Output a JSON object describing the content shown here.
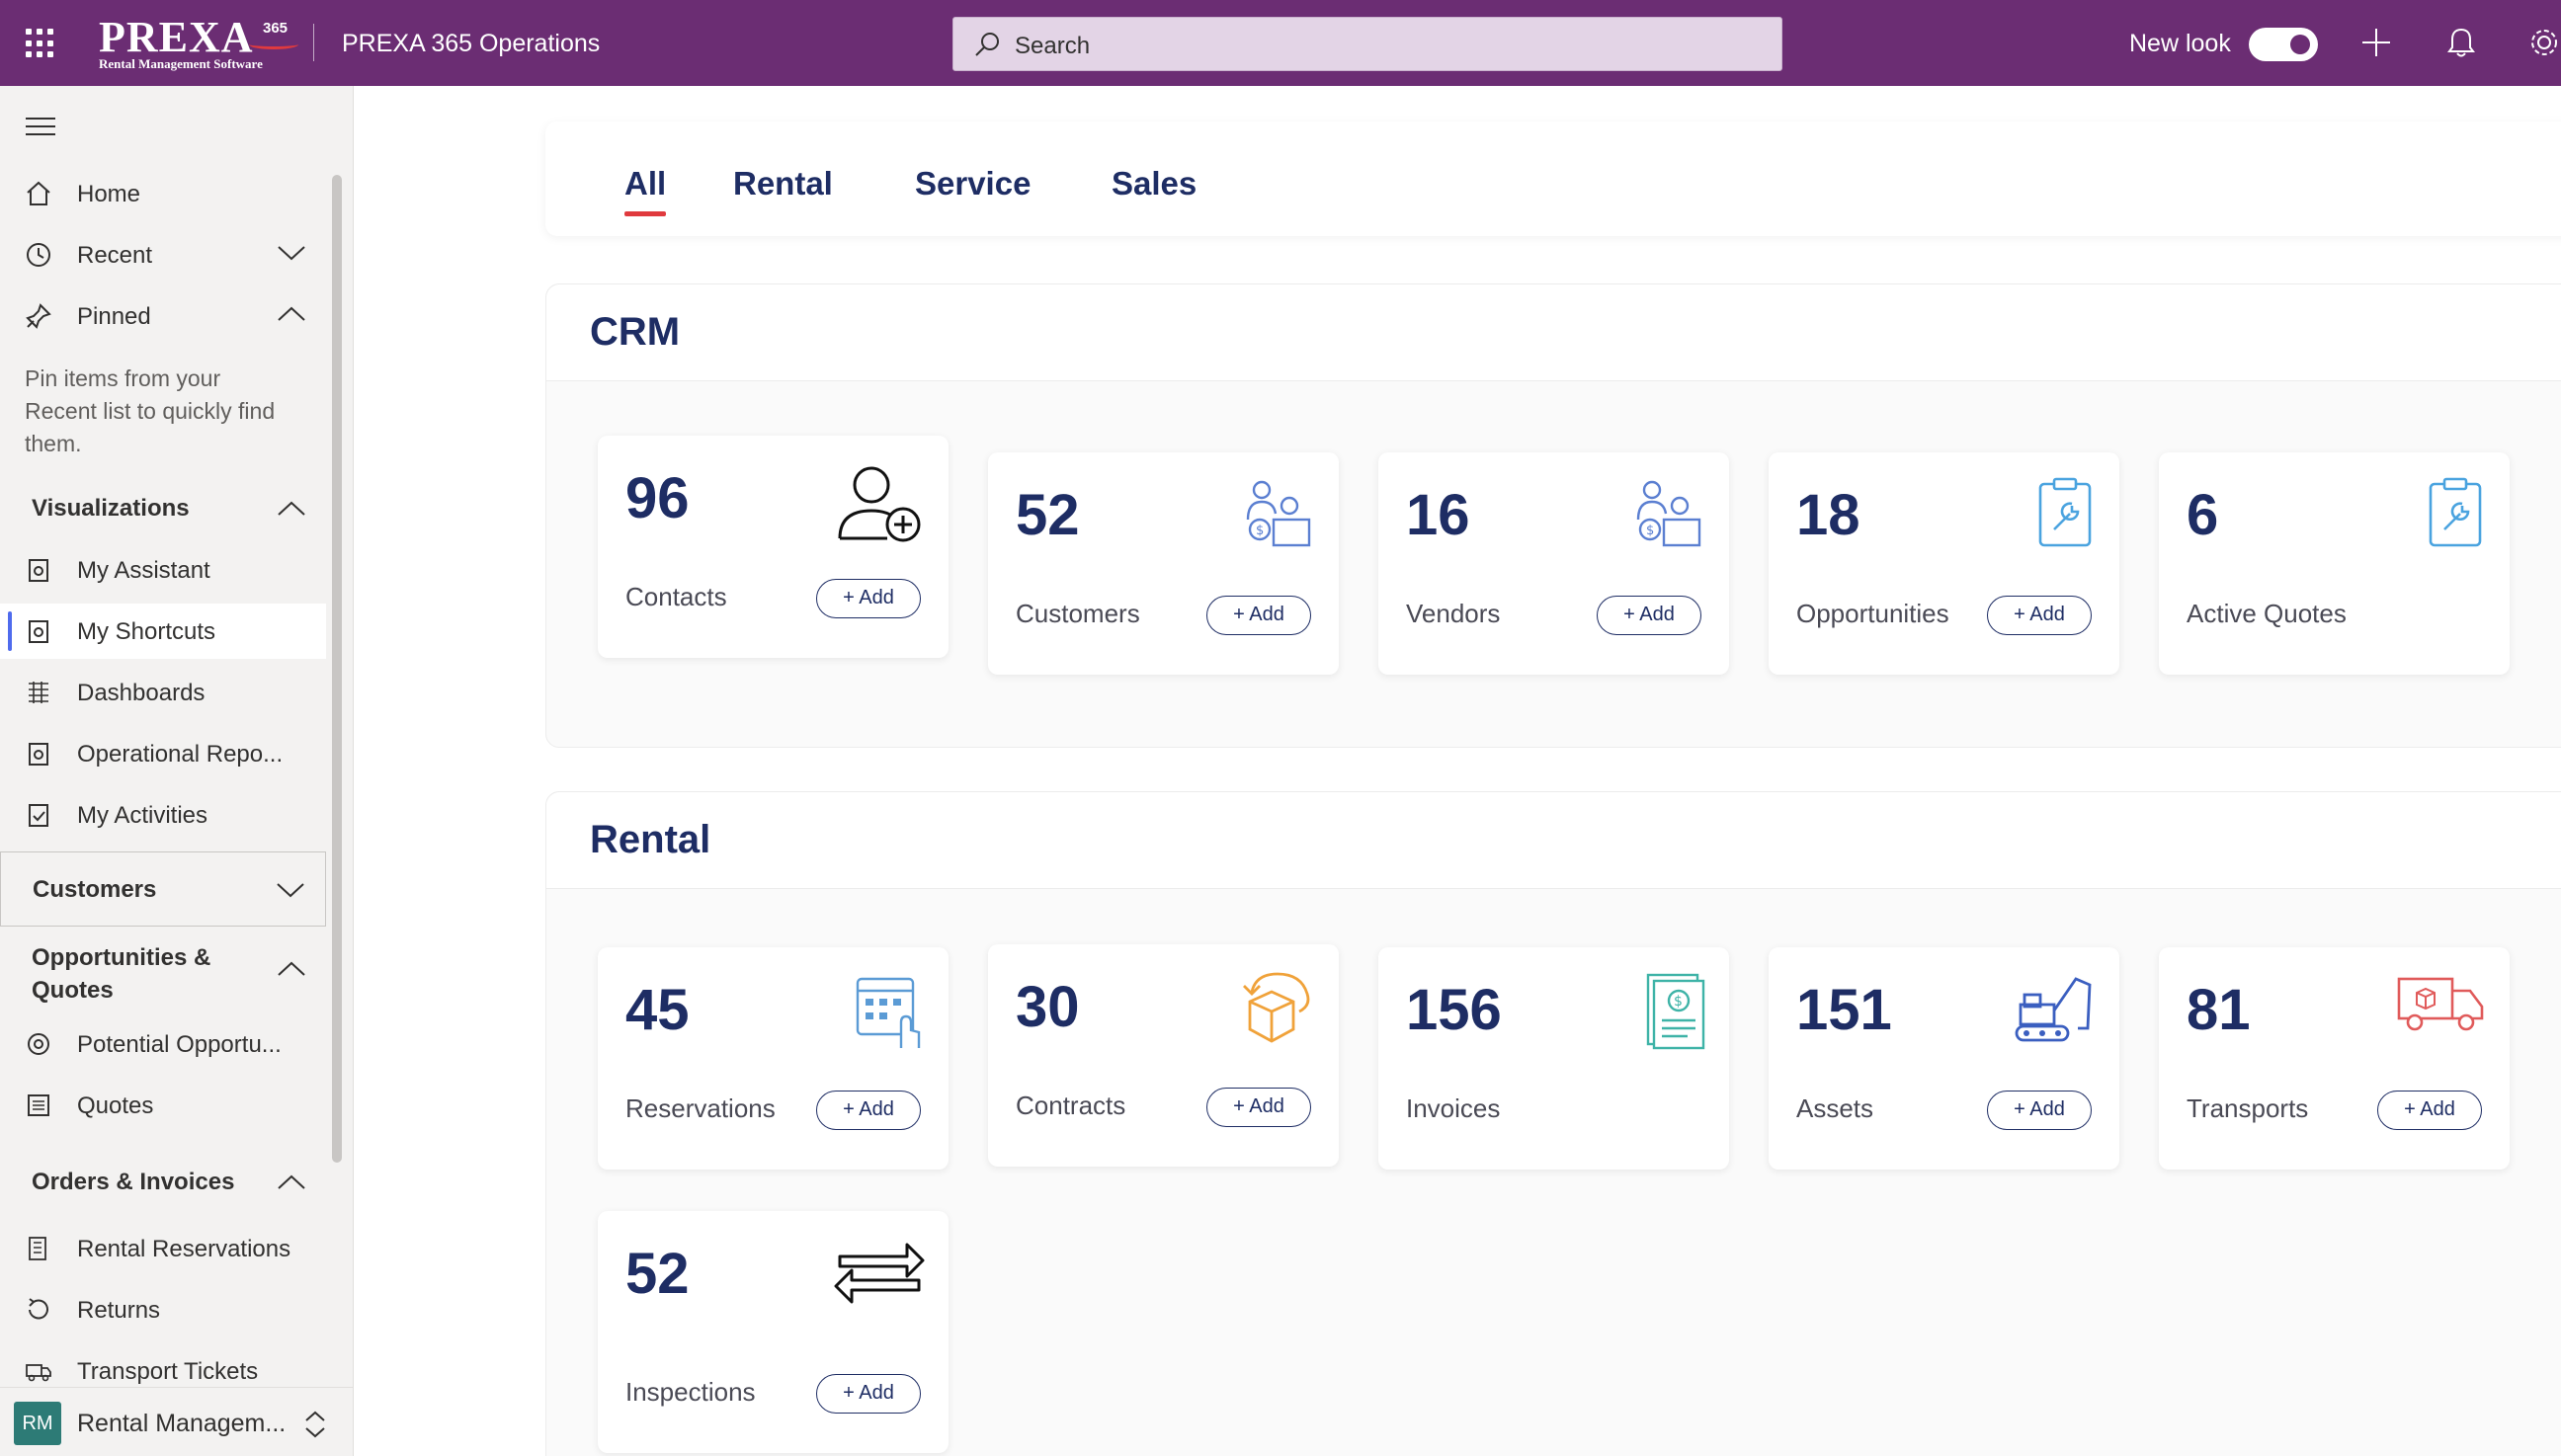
{
  "topbar": {
    "logo_word": "PREXA",
    "logo_sup": "365",
    "logo_sub": "Rental Management Software",
    "app_title": "PREXA 365 Operations",
    "search_placeholder": "Search",
    "new_look_label": "New look",
    "new_look_on": true
  },
  "sidebar": {
    "items": [
      {
        "label": "Home",
        "icon": "home-icon"
      },
      {
        "label": "Recent",
        "icon": "clock-icon"
      },
      {
        "label": "Pinned",
        "icon": "pin-icon"
      }
    ],
    "pin_help": "Pin items from your Recent list to quickly find them.",
    "visualizations": {
      "title": "Visualizations",
      "items": [
        {
          "label": "My Assistant"
        },
        {
          "label": "My Shortcuts",
          "selected": true
        },
        {
          "label": "Dashboards"
        },
        {
          "label": "Operational Repo..."
        },
        {
          "label": "My Activities"
        }
      ]
    },
    "customers": {
      "title": "Customers"
    },
    "opportunities": {
      "title": "Opportunities & Quotes",
      "items": [
        {
          "label": "Potential Opportu..."
        },
        {
          "label": "Quotes"
        }
      ]
    },
    "orders": {
      "title": "Orders & Invoices",
      "items": [
        {
          "label": "Rental Reservations"
        },
        {
          "label": "Returns"
        },
        {
          "label": "Transport Tickets"
        }
      ]
    },
    "app_switcher": {
      "initials": "RM",
      "label": "Rental Managem..."
    }
  },
  "tabs": [
    {
      "label": "All",
      "active": true
    },
    {
      "label": "Rental"
    },
    {
      "label": "Service"
    },
    {
      "label": "Sales"
    }
  ],
  "add_label": "+ Add",
  "crm": {
    "title": "CRM",
    "cards": [
      {
        "count": "96",
        "label": "Contacts",
        "icon": "add-person-icon",
        "has_add": true
      },
      {
        "count": "52",
        "label": "Customers",
        "icon": "customers-icon",
        "has_add": true
      },
      {
        "count": "16",
        "label": "Vendors",
        "icon": "vendors-icon",
        "has_add": true
      },
      {
        "count": "18",
        "label": "Opportunities",
        "icon": "clipboard-wrench-icon",
        "has_add": true
      },
      {
        "count": "6",
        "label": "Active Quotes",
        "icon": "clipboard-wrench-icon",
        "has_add": false
      }
    ]
  },
  "rental": {
    "title": "Rental",
    "cards": [
      {
        "count": "45",
        "label": "Reservations",
        "icon": "calendar-touch-icon",
        "has_add": true
      },
      {
        "count": "30",
        "label": "Contracts",
        "icon": "return-box-icon",
        "has_add": true
      },
      {
        "count": "156",
        "label": "Invoices",
        "icon": "invoice-icon",
        "has_add": false
      },
      {
        "count": "151",
        "label": "Assets",
        "icon": "excavator-icon",
        "has_add": true
      },
      {
        "count": "81",
        "label": "Transports",
        "icon": "truck-icon",
        "has_add": true
      },
      {
        "count": "52",
        "label": "Inspections",
        "icon": "swap-arrows-icon",
        "has_add": true
      }
    ]
  },
  "colors": {
    "brand": "#6b2d73",
    "heading": "#1e2d64",
    "accent": "#e03a3e",
    "selected": "#4f6bed"
  }
}
